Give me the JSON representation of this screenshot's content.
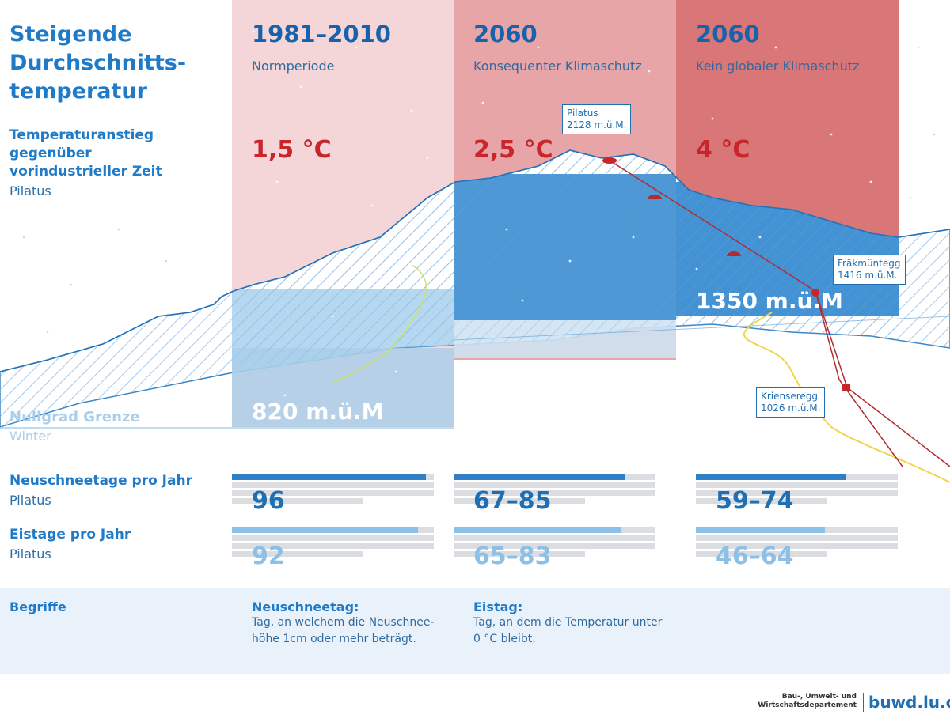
{
  "title": "Steigende Durchschnitts-temperatur",
  "title_lines": [
    "Steigende",
    "Durchschnitts-",
    "temperatur"
  ],
  "subtitle_lines": [
    "Temperaturanstieg",
    "gegenüber",
    "vorindustrieller Zeit"
  ],
  "subtitle_location": "Pilatus",
  "columns": [
    {
      "year": "1981–2010",
      "label": "Normperiode",
      "temperature": "1,5 °C",
      "color": "#f3d4d5"
    },
    {
      "year": "2060",
      "label": "Konsequenter Klimaschutz",
      "temperature": "2,5 °C",
      "color": "#e5a3a5"
    },
    {
      "year": "2060",
      "label": "Kein globaler Klimaschutz",
      "temperature": "4 °C",
      "color": "#d97577"
    }
  ],
  "altitude_labels": {
    "col1": "820 m.ü.M",
    "col3": "1350 m.ü.M"
  },
  "zero_degree": {
    "label": "Nullgrad Grenze",
    "note": "Winter"
  },
  "places": [
    {
      "name": "Pilatus",
      "elevation": "2128 m.ü.M."
    },
    {
      "name": "Fräkmüntegg",
      "elevation": "1416 m.ü.M."
    },
    {
      "name": "Krienseregg",
      "elevation": "1026 m.ü.M."
    }
  ],
  "rows": [
    {
      "label": "Neuschneetage pro Jahr",
      "location": "Pilatus",
      "values": [
        "96",
        "67–85",
        "59–74"
      ],
      "bar_fractions": [
        0.96,
        0.85,
        0.74
      ]
    },
    {
      "label": "Eistage pro Jahr",
      "location": "Pilatus",
      "values": [
        "92",
        "65–83",
        "46–64"
      ],
      "bar_fractions": [
        0.92,
        0.83,
        0.64
      ]
    }
  ],
  "terms": {
    "heading": "Begriffe",
    "items": [
      {
        "term": "Neuschneetag:",
        "definition_lines": [
          "Tag, an welchem die Neuschnee-",
          "höhe 1cm oder mehr beträgt."
        ]
      },
      {
        "term": "Eistag:",
        "definition_lines": [
          "Tag, an dem die Temperatur unter",
          "0 °C bleibt."
        ]
      }
    ]
  },
  "footer": {
    "department_lines": [
      "Bau-, Umwelt- und",
      "Wirtschaftsdepartement"
    ],
    "brand": "buwd.lu.ch"
  },
  "colors": {
    "accent_blue": "#1e6fb3",
    "light_blue": "#a9cfea",
    "red": "#c9262c",
    "terms_band": "#e9f2fa"
  }
}
